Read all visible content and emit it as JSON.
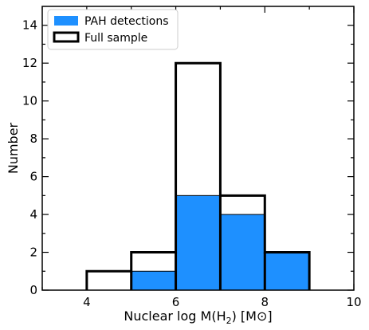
{
  "chart_data": {
    "type": "bar",
    "bin_edges": [
      4,
      5,
      6,
      7,
      8,
      9
    ],
    "series": [
      {
        "name": "PAH detections",
        "values": [
          0,
          1,
          5,
          4,
          2
        ],
        "style": "filled",
        "color": "#1e90ff"
      },
      {
        "name": "Full sample",
        "values": [
          1,
          2,
          12,
          5,
          2
        ],
        "style": "step-outline",
        "color": "#000000"
      }
    ],
    "xlabel_main": "Nuclear log M(H",
    "xlabel_sub": "2",
    "xlabel_tail": ") [M⊙]",
    "ylabel": "Number",
    "xlim": [
      3,
      10
    ],
    "ylim": [
      0,
      15
    ],
    "x_ticks": [
      4,
      6,
      8,
      10
    ],
    "y_ticks": [
      0,
      2,
      4,
      6,
      8,
      10,
      12,
      14
    ],
    "legend_position": "top-left",
    "grid": false
  }
}
